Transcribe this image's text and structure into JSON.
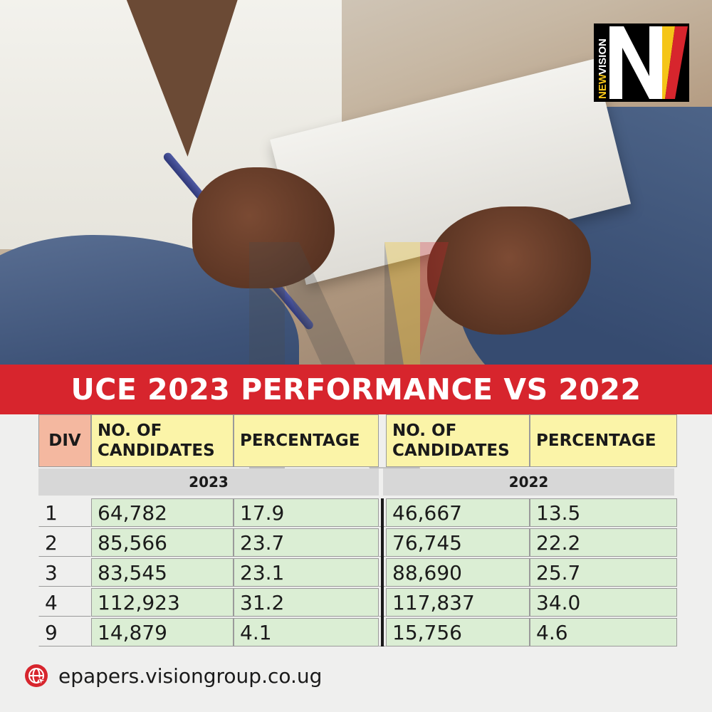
{
  "brand": {
    "logo_text_new": "NEW",
    "logo_text_vision": "VISION",
    "logo_letters": "NV",
    "colors": {
      "black": "#000000",
      "yellow": "#f5c518",
      "red": "#d7252d"
    }
  },
  "title": "UCE 2023 PERFORMANCE VS 2022",
  "chart_data": {
    "type": "table",
    "title": "UCE 2023 PERFORMANCE VS 2022",
    "headers": [
      "DIV",
      "NO. OF CANDIDATES",
      "PERCENTAGE",
      "NO. OF CANDIDATES",
      "PERCENTAGE"
    ],
    "year_labels": [
      "2023",
      "2022"
    ],
    "rows": [
      {
        "div": "1",
        "c2023": "64,782",
        "p2023": "17.9",
        "c2022": "46,667",
        "p2022": "13.5"
      },
      {
        "div": "2",
        "c2023": "85,566",
        "p2023": "23.7",
        "c2022": "76,745",
        "p2022": "22.2"
      },
      {
        "div": "3",
        "c2023": "83,545",
        "p2023": "23.1",
        "c2022": "88,690",
        "p2022": "25.7"
      },
      {
        "div": "4",
        "c2023": "112,923",
        "p2023": "31.2",
        "c2022": "117,837",
        "p2022": "34.0"
      },
      {
        "div": "9",
        "c2023": "14,879",
        "p2023": "4.1",
        "c2022": "15,756",
        "p2022": "4.6"
      }
    ]
  },
  "footer": {
    "icon": "globe-icon",
    "url": "epapers.visiongroup.co.ug",
    "icon_color": "#d7252d"
  }
}
